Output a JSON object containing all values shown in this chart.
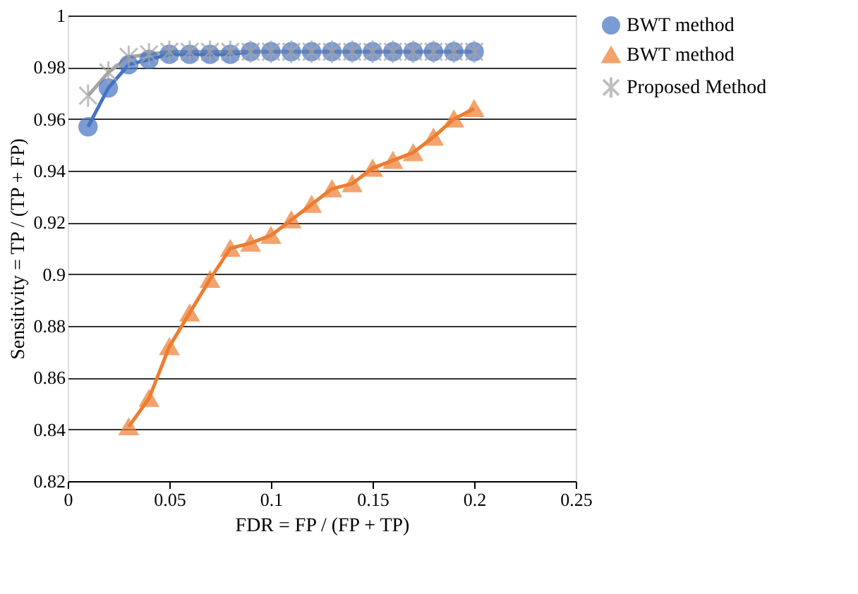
{
  "chart_data": {
    "type": "line",
    "xlabel": "FDR = FP / (FP + TP)",
    "ylabel": "Sensitivity = TP / (TP + FP)",
    "xlim": [
      0,
      0.25
    ],
    "xticks": [
      0,
      0.05,
      0.1,
      0.15,
      0.2,
      0.25
    ],
    "ylim": [
      0.82,
      1
    ],
    "yticks": [
      0.82,
      0.84,
      0.86,
      0.88,
      0.9,
      0.92,
      0.94,
      0.96,
      0.98,
      1
    ],
    "grid": "y",
    "legend": "right",
    "series": [
      {
        "name": "BWT method",
        "color": "#4472c4",
        "marker": "circle",
        "x": [
          0.01,
          0.02,
          0.03,
          0.04,
          0.05,
          0.06,
          0.07,
          0.08,
          0.09,
          0.1,
          0.11,
          0.12,
          0.13,
          0.14,
          0.15,
          0.16,
          0.17,
          0.18,
          0.19,
          0.2
        ],
        "values": [
          0.957,
          0.972,
          0.981,
          0.983,
          0.985,
          0.985,
          0.985,
          0.985,
          0.986,
          0.986,
          0.986,
          0.986,
          0.986,
          0.986,
          0.986,
          0.986,
          0.986,
          0.986,
          0.986,
          0.986
        ]
      },
      {
        "name": "BWT method",
        "color": "#ed7d31",
        "marker": "triangle",
        "x": [
          0.03,
          0.04,
          0.05,
          0.06,
          0.07,
          0.08,
          0.09,
          0.1,
          0.11,
          0.12,
          0.13,
          0.14,
          0.15,
          0.16,
          0.17,
          0.18,
          0.19,
          0.2
        ],
        "values": [
          0.841,
          0.852,
          0.872,
          0.885,
          0.898,
          0.91,
          0.912,
          0.915,
          0.921,
          0.927,
          0.933,
          0.935,
          0.941,
          0.944,
          0.947,
          0.953,
          0.96,
          0.964
        ]
      },
      {
        "name": "Proposed Method",
        "color": "#a5a5a5",
        "marker": "cross",
        "x": [
          0.01,
          0.02,
          0.03,
          0.04,
          0.05,
          0.06,
          0.07,
          0.08,
          0.09,
          0.1,
          0.11,
          0.12,
          0.13,
          0.14,
          0.15,
          0.16,
          0.17,
          0.18,
          0.19,
          0.2
        ],
        "values": [
          0.969,
          0.978,
          0.984,
          0.985,
          0.986,
          0.986,
          0.986,
          0.986,
          0.986,
          0.986,
          0.986,
          0.986,
          0.986,
          0.986,
          0.986,
          0.986,
          0.986,
          0.986,
          0.986,
          0.986
        ]
      }
    ]
  }
}
